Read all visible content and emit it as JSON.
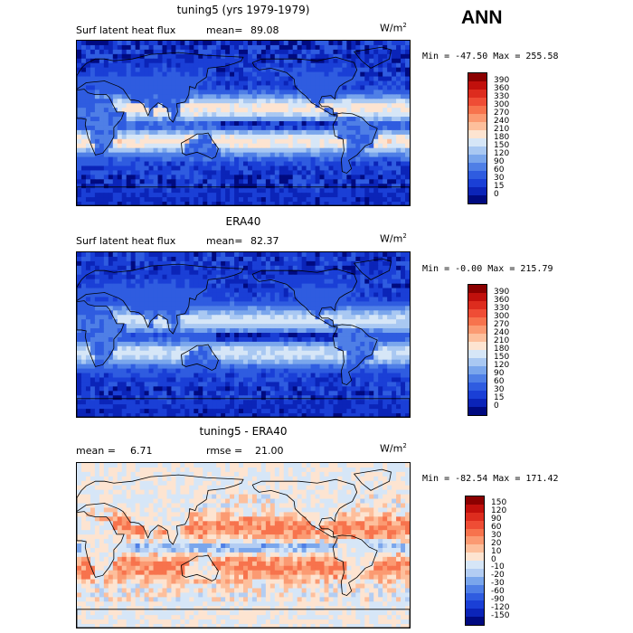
{
  "season": "ANN",
  "panels": [
    {
      "title": "tuning5 (yrs 1979-1979)",
      "left_label": "Surf latent heat flux",
      "mean_label": "mean=",
      "mean_value": "89.08",
      "units": "W/m",
      "units_sup": "2",
      "minmax": "Min = -47.50 Max = 255.58",
      "colorbar": {
        "levels": [
          "390",
          "360",
          "330",
          "300",
          "270",
          "240",
          "210",
          "180",
          "150",
          "120",
          "90",
          "60",
          "30",
          "15",
          "0"
        ],
        "colors": [
          "#8b0000",
          "#c1100c",
          "#dd2c1e",
          "#ef4d35",
          "#f7734d",
          "#fb9a72",
          "#fdbf9c",
          "#fde4d1",
          "#d6e6f7",
          "#a9c8f2",
          "#7aa6ec",
          "#4f7fe6",
          "#2f5ce0",
          "#1a3fd6",
          "#0b24b8",
          "#000a80"
        ]
      }
    },
    {
      "title": "ERA40",
      "left_label": "Surf latent heat flux",
      "mean_label": "mean=",
      "mean_value": "82.37",
      "units": "W/m",
      "units_sup": "2",
      "minmax": "Min = -0.00 Max = 215.79",
      "colorbar": {
        "levels": [
          "390",
          "360",
          "330",
          "300",
          "270",
          "240",
          "210",
          "180",
          "150",
          "120",
          "90",
          "60",
          "30",
          "15",
          "0"
        ],
        "colors": [
          "#8b0000",
          "#c1100c",
          "#dd2c1e",
          "#ef4d35",
          "#f7734d",
          "#fb9a72",
          "#fdbf9c",
          "#fde4d1",
          "#d6e6f7",
          "#a9c8f2",
          "#7aa6ec",
          "#4f7fe6",
          "#2f5ce0",
          "#1a3fd6",
          "#0b24b8",
          "#000a80"
        ]
      }
    },
    {
      "title": "tuning5 - ERA40",
      "left_label": "mean =",
      "left_value": "6.71",
      "mean_label": "rmse =",
      "mean_value": "21.00",
      "units": "W/m",
      "units_sup": "2",
      "minmax": "Min = -82.54 Max = 171.42",
      "colorbar": {
        "levels": [
          "150",
          "120",
          "90",
          "60",
          "30",
          "20",
          "10",
          "0",
          "-10",
          "-20",
          "-30",
          "-60",
          "-90",
          "-120",
          "-150"
        ],
        "colors": [
          "#8b0000",
          "#c1100c",
          "#dd2c1e",
          "#ef4d35",
          "#f7734d",
          "#fb9a72",
          "#fdbf9c",
          "#fde4d1",
          "#d6e6f7",
          "#b3cdf3",
          "#7aa6ec",
          "#4f7fe6",
          "#2f5ce0",
          "#1a3fd6",
          "#0b24b8",
          "#000a80"
        ]
      }
    }
  ]
}
